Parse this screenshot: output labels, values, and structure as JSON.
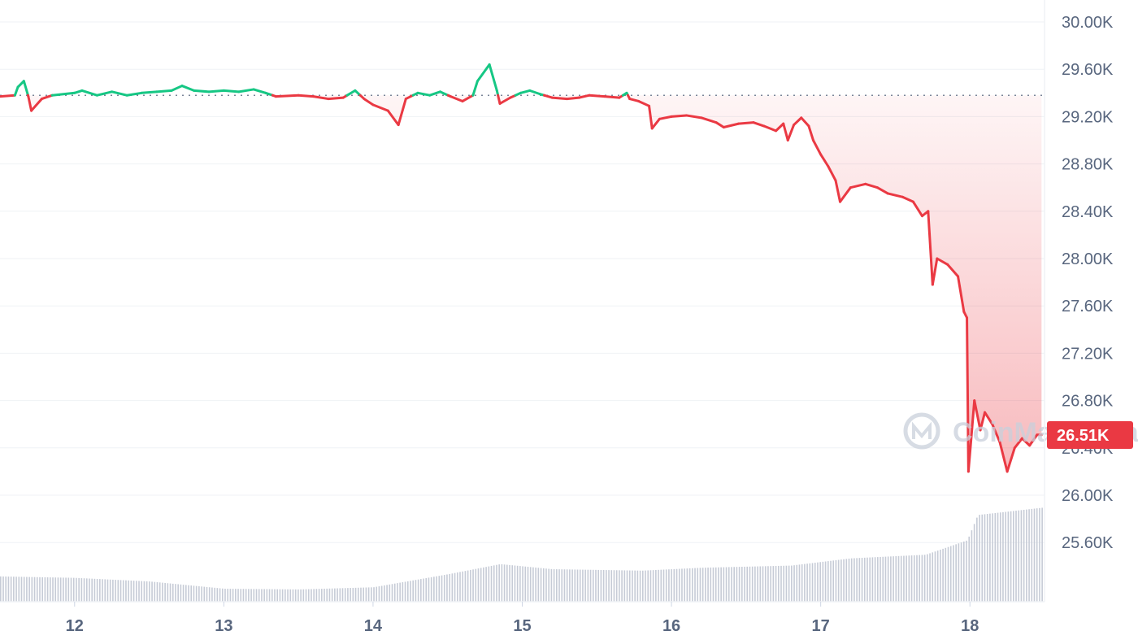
{
  "chart_data": {
    "type": "line",
    "title": "",
    "xlabel": "",
    "ylabel": "",
    "x_ticks": [
      "12",
      "13",
      "14",
      "15",
      "16",
      "17",
      "18"
    ],
    "x_range": [
      11.5,
      18.5
    ],
    "y_ticks": [
      "30.00K",
      "29.60K",
      "29.20K",
      "28.80K",
      "28.40K",
      "28.00K",
      "27.60K",
      "27.20K",
      "26.80K",
      "26.40K",
      "26.00K",
      "25.60K"
    ],
    "ylim": [
      25.3,
      30.1
    ],
    "baseline": 29.38,
    "current_price_label": "26.51K",
    "colors": {
      "up": "#16c784",
      "down": "#ea3943",
      "grid": "#eff2f5",
      "axis_text": "#58667e",
      "volume": "#c6cbd6"
    },
    "grid": true,
    "watermark": {
      "text": "CoinMarketCap",
      "icon": "coinmarketcap-logo-icon"
    },
    "series": [
      {
        "values": [
          [
            11.5,
            29.37
          ],
          [
            11.6,
            29.38
          ],
          [
            11.62,
            29.45
          ],
          [
            11.66,
            29.5
          ],
          [
            11.69,
            29.37
          ],
          [
            11.71,
            29.25
          ],
          [
            11.78,
            29.35
          ],
          [
            11.85,
            29.38
          ],
          [
            12.0,
            29.4
          ],
          [
            12.05,
            29.42
          ],
          [
            12.15,
            29.38
          ],
          [
            12.25,
            29.41
          ],
          [
            12.35,
            29.38
          ],
          [
            12.45,
            29.4
          ],
          [
            12.55,
            29.41
          ],
          [
            12.65,
            29.42
          ],
          [
            12.72,
            29.46
          ],
          [
            12.8,
            29.42
          ],
          [
            12.9,
            29.41
          ],
          [
            13.0,
            29.42
          ],
          [
            13.1,
            29.41
          ],
          [
            13.2,
            29.43
          ],
          [
            13.28,
            29.4
          ],
          [
            13.35,
            29.37
          ],
          [
            13.5,
            29.38
          ],
          [
            13.6,
            29.37
          ],
          [
            13.7,
            29.35
          ],
          [
            13.8,
            29.36
          ],
          [
            13.88,
            29.42
          ],
          [
            13.94,
            29.35
          ],
          [
            14.0,
            29.3
          ],
          [
            14.1,
            29.25
          ],
          [
            14.17,
            29.13
          ],
          [
            14.22,
            29.35
          ],
          [
            14.3,
            29.4
          ],
          [
            14.38,
            29.38
          ],
          [
            14.45,
            29.41
          ],
          [
            14.52,
            29.37
          ],
          [
            14.6,
            29.33
          ],
          [
            14.67,
            29.38
          ],
          [
            14.7,
            29.5
          ],
          [
            14.78,
            29.64
          ],
          [
            14.83,
            29.42
          ],
          [
            14.85,
            29.31
          ],
          [
            14.92,
            29.36
          ],
          [
            14.99,
            29.4
          ],
          [
            15.05,
            29.42
          ],
          [
            15.12,
            29.39
          ],
          [
            15.2,
            29.36
          ],
          [
            15.3,
            29.35
          ],
          [
            15.38,
            29.36
          ],
          [
            15.45,
            29.38
          ],
          [
            15.55,
            29.37
          ],
          [
            15.65,
            29.36
          ],
          [
            15.7,
            29.4
          ],
          [
            15.72,
            29.35
          ],
          [
            15.78,
            29.33
          ],
          [
            15.85,
            29.29
          ],
          [
            15.87,
            29.1
          ],
          [
            15.92,
            29.18
          ],
          [
            16.0,
            29.2
          ],
          [
            16.1,
            29.21
          ],
          [
            16.2,
            29.19
          ],
          [
            16.3,
            29.15
          ],
          [
            16.35,
            29.11
          ],
          [
            16.45,
            29.14
          ],
          [
            16.55,
            29.15
          ],
          [
            16.62,
            29.12
          ],
          [
            16.7,
            29.08
          ],
          [
            16.75,
            29.14
          ],
          [
            16.78,
            29.0
          ],
          [
            16.82,
            29.13
          ],
          [
            16.87,
            29.19
          ],
          [
            16.92,
            29.12
          ],
          [
            16.95,
            29.0
          ],
          [
            17.0,
            28.88
          ],
          [
            17.05,
            28.78
          ],
          [
            17.1,
            28.66
          ],
          [
            17.13,
            28.48
          ],
          [
            17.2,
            28.6
          ],
          [
            17.3,
            28.63
          ],
          [
            17.38,
            28.6
          ],
          [
            17.45,
            28.55
          ],
          [
            17.55,
            28.52
          ],
          [
            17.62,
            28.48
          ],
          [
            17.68,
            28.36
          ],
          [
            17.72,
            28.4
          ],
          [
            17.75,
            27.78
          ],
          [
            17.78,
            28.0
          ],
          [
            17.85,
            27.95
          ],
          [
            17.92,
            27.85
          ],
          [
            17.96,
            27.55
          ],
          [
            17.98,
            27.5
          ],
          [
            17.99,
            26.2
          ],
          [
            18.03,
            26.8
          ],
          [
            18.07,
            26.55
          ],
          [
            18.1,
            26.7
          ],
          [
            18.15,
            26.6
          ],
          [
            18.2,
            26.45
          ],
          [
            18.25,
            26.2
          ],
          [
            18.3,
            26.4
          ],
          [
            18.35,
            26.48
          ],
          [
            18.4,
            26.42
          ],
          [
            18.45,
            26.51
          ],
          [
            18.48,
            26.51
          ]
        ]
      }
    ],
    "volume": {
      "x": [
        11.5,
        12.0,
        12.5,
        13.0,
        13.5,
        14.0,
        14.5,
        14.85,
        15.2,
        15.8,
        16.2,
        16.8,
        17.2,
        17.7,
        17.98,
        18.05,
        18.48
      ],
      "values": [
        0.35,
        0.33,
        0.28,
        0.18,
        0.17,
        0.2,
        0.38,
        0.52,
        0.45,
        0.43,
        0.47,
        0.5,
        0.6,
        0.65,
        0.85,
        1.2,
        1.3
      ]
    }
  }
}
